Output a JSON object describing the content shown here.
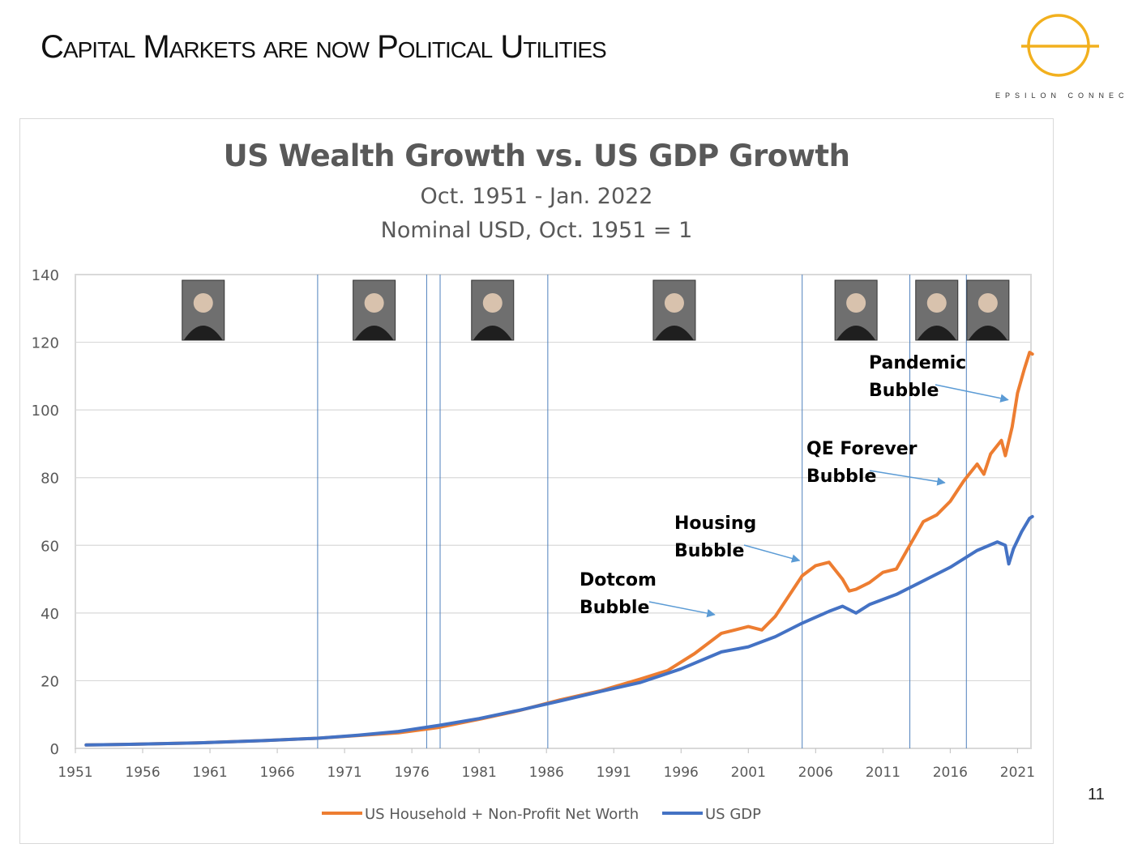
{
  "slide": {
    "title": "Capital Markets are now Political Utilities",
    "page_number": "11",
    "logo_text": "EPSILON CONNECT",
    "logo_color": "#F2B01E"
  },
  "chart_data": {
    "type": "line",
    "title": "US Wealth Growth vs. US GDP Growth",
    "subtitle": [
      "Oct. 1951 - Jan. 2022",
      "Nominal USD, Oct. 1951 = 1"
    ],
    "xlabel": "",
    "ylabel": "",
    "xlim": [
      1951,
      2022
    ],
    "ylim": [
      0,
      140
    ],
    "x_ticks": [
      1951,
      1956,
      1961,
      1966,
      1971,
      1976,
      1981,
      1986,
      1991,
      1996,
      2001,
      2006,
      2011,
      2016,
      2021
    ],
    "y_ticks": [
      0,
      20,
      40,
      60,
      80,
      100,
      120,
      140
    ],
    "grid": true,
    "legend_position": "bottom",
    "era_lines": [
      1969,
      1977.1,
      1978.1,
      1986.1,
      2005,
      2013,
      2017.2
    ],
    "portraits_at": [
      1960.5,
      1973.2,
      1982,
      1995.5,
      2009,
      2015,
      2018.8
    ],
    "series": [
      {
        "name": "US Household + Non-Profit Net Worth",
        "color": "#ED7D31",
        "points": [
          [
            1951.8,
            1.0
          ],
          [
            1955,
            1.2
          ],
          [
            1960,
            1.6
          ],
          [
            1965,
            2.3
          ],
          [
            1969,
            3.0
          ],
          [
            1972,
            3.8
          ],
          [
            1975,
            4.6
          ],
          [
            1978,
            6.2
          ],
          [
            1981,
            8.6
          ],
          [
            1984,
            11.2
          ],
          [
            1987,
            14.3
          ],
          [
            1990,
            17.0
          ],
          [
            1993,
            20.5
          ],
          [
            1995,
            23.0
          ],
          [
            1997,
            28.0
          ],
          [
            1999,
            34.0
          ],
          [
            2000,
            35.0
          ],
          [
            2001,
            36.0
          ],
          [
            2002,
            35.0
          ],
          [
            2003,
            39.0
          ],
          [
            2004,
            45.0
          ],
          [
            2005,
            51.0
          ],
          [
            2006,
            54.0
          ],
          [
            2007,
            55.0
          ],
          [
            2008,
            50.0
          ],
          [
            2008.5,
            46.5
          ],
          [
            2009,
            47.0
          ],
          [
            2010,
            49.0
          ],
          [
            2011,
            52.0
          ],
          [
            2012,
            53.0
          ],
          [
            2013,
            60.0
          ],
          [
            2014,
            67.0
          ],
          [
            2015,
            69.0
          ],
          [
            2016,
            73.0
          ],
          [
            2017,
            79.0
          ],
          [
            2018,
            84.0
          ],
          [
            2018.5,
            81.0
          ],
          [
            2019,
            87.0
          ],
          [
            2019.8,
            91.0
          ],
          [
            2020.1,
            86.5
          ],
          [
            2020.6,
            95.0
          ],
          [
            2021,
            105.0
          ],
          [
            2021.5,
            112.0
          ],
          [
            2021.9,
            117.0
          ],
          [
            2022.1,
            116.5
          ]
        ]
      },
      {
        "name": "US GDP",
        "color": "#4472C4",
        "points": [
          [
            1951.8,
            1.0
          ],
          [
            1955,
            1.2
          ],
          [
            1960,
            1.6
          ],
          [
            1965,
            2.3
          ],
          [
            1969,
            3.0
          ],
          [
            1972,
            3.9
          ],
          [
            1975,
            5.0
          ],
          [
            1978,
            6.8
          ],
          [
            1981,
            8.8
          ],
          [
            1984,
            11.3
          ],
          [
            1987,
            14.0
          ],
          [
            1990,
            16.8
          ],
          [
            1993,
            19.5
          ],
          [
            1996,
            23.5
          ],
          [
            1999,
            28.5
          ],
          [
            2001,
            30.0
          ],
          [
            2003,
            33.0
          ],
          [
            2005,
            37.0
          ],
          [
            2007,
            40.5
          ],
          [
            2008,
            42.0
          ],
          [
            2009,
            40.0
          ],
          [
            2010,
            42.5
          ],
          [
            2012,
            45.5
          ],
          [
            2014,
            49.5
          ],
          [
            2016,
            53.5
          ],
          [
            2018,
            58.5
          ],
          [
            2019.5,
            61.0
          ],
          [
            2020.1,
            60.0
          ],
          [
            2020.35,
            54.5
          ],
          [
            2020.7,
            59.0
          ],
          [
            2021.3,
            64.0
          ],
          [
            2021.9,
            68.0
          ],
          [
            2022.1,
            68.5
          ]
        ]
      }
    ],
    "annotations": [
      {
        "label": [
          "Dotcom",
          "Bubble"
        ],
        "target": [
          1998.5,
          39.5
        ]
      },
      {
        "label": [
          "Housing",
          "Bubble"
        ],
        "target": [
          2004.8,
          55.5
        ]
      },
      {
        "label": [
          "QE Forever",
          "Bubble"
        ],
        "target": [
          2015.6,
          78.5
        ]
      },
      {
        "label": [
          "Pandemic",
          "Bubble"
        ],
        "target": [
          2020.3,
          103.0
        ]
      }
    ]
  }
}
